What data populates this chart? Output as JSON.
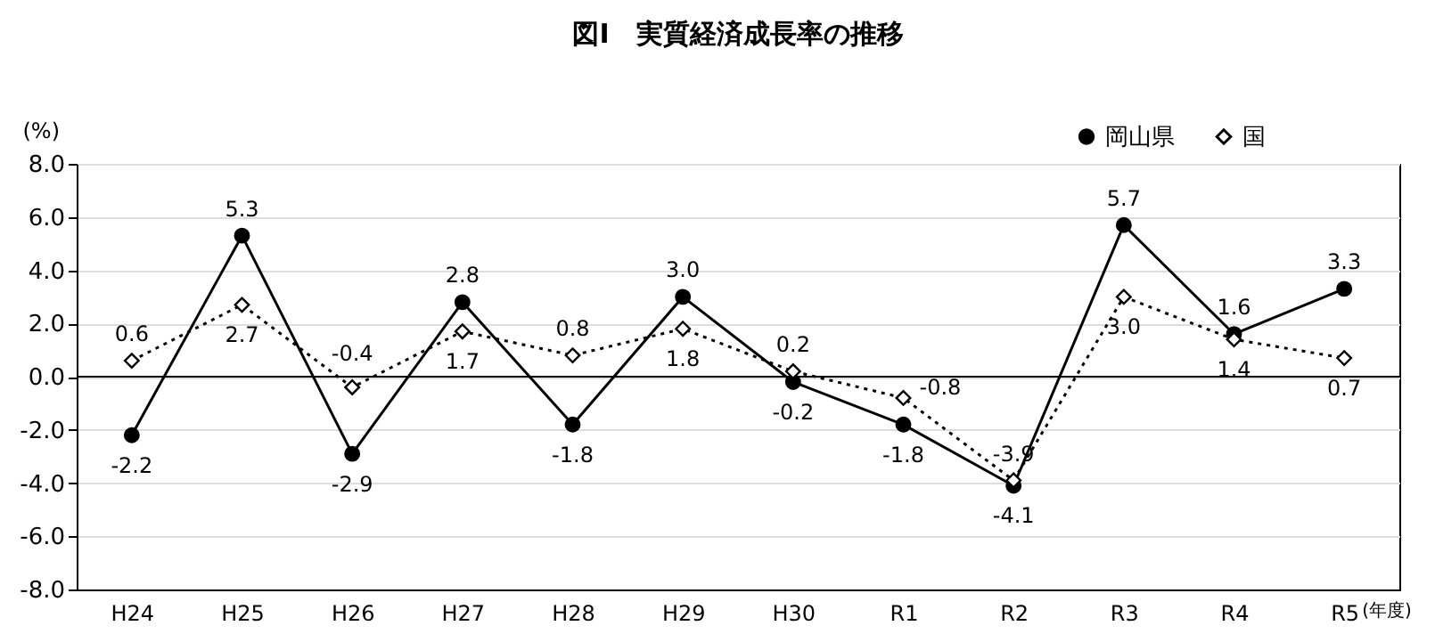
{
  "chart_data": {
    "type": "line",
    "title": "図Ⅰ　実質経済成長率の推移",
    "ylabel": "(%)",
    "categories": [
      "H24",
      "H25",
      "H26",
      "H27",
      "H28",
      "H29",
      "H30",
      "R1",
      "R2",
      "R3",
      "R4",
      "R5"
    ],
    "series": [
      {
        "name": "岡山県",
        "color": "#000000",
        "marker": "circle",
        "line_style": "solid",
        "values": [
          -2.2,
          5.3,
          -2.9,
          2.8,
          -1.8,
          3.0,
          -0.2,
          -1.8,
          -4.1,
          5.7,
          1.6,
          3.3
        ],
        "value_labels": [
          "-2.2",
          "5.3",
          "-2.9",
          "2.8",
          "-1.8",
          "3.0",
          "-0.2",
          "-1.8",
          "-4.1",
          "5.7",
          "1.6",
          "3.3"
        ]
      },
      {
        "name": "国",
        "color": "#000000",
        "marker": "diamond",
        "line_style": "dotted",
        "values": [
          0.6,
          2.7,
          -0.4,
          1.7,
          0.8,
          1.8,
          0.2,
          -0.8,
          -3.9,
          3.0,
          1.4,
          0.7
        ],
        "value_labels": [
          "0.6",
          "2.7",
          "-0.4",
          "1.7",
          "0.8",
          "1.8",
          "0.2",
          "-0.8",
          "-3.9",
          "3.0",
          "1.4",
          "0.7"
        ]
      }
    ],
    "ylim": [
      -8,
      8
    ],
    "yticks": [
      {
        "value": -8,
        "label": "-8.0"
      },
      {
        "value": -6,
        "label": "-6.0"
      },
      {
        "value": -4,
        "label": "-4.0"
      },
      {
        "value": -2,
        "label": "-2.0"
      },
      {
        "value": 0,
        "label": "0.0"
      },
      {
        "value": 2,
        "label": "2.0"
      },
      {
        "value": 4,
        "label": "4.0"
      },
      {
        "value": 6,
        "label": "6.0"
      },
      {
        "value": 8,
        "label": "8.0"
      }
    ],
    "grid": "y",
    "legend": "top right",
    "ref_lines": [
      {
        "axis": "y",
        "value": 0,
        "color": "#000000"
      }
    ],
    "annotations": [
      "(年度)"
    ]
  }
}
